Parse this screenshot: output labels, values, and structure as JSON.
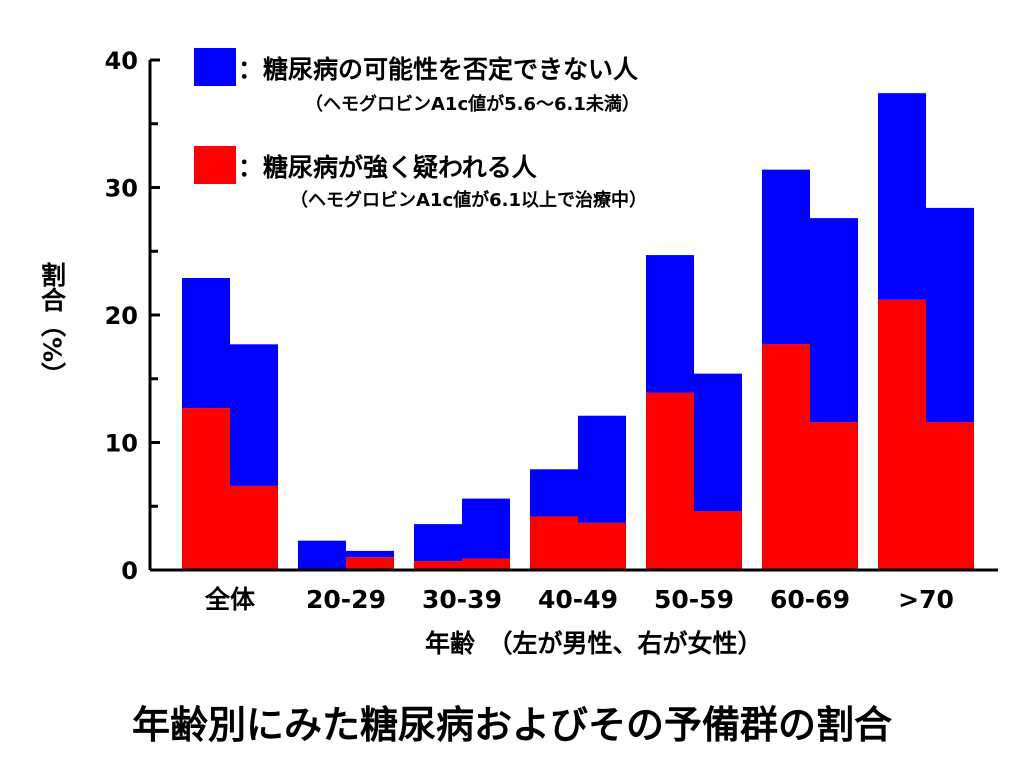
{
  "title": "年齢別にみた糖尿病およびその予備群の割合",
  "legend": {
    "items": [
      {
        "color": "#0000ff",
        "label": "：糖尿病の可能性を否定できない人",
        "sub": "（ヘモグロビンA1c値が5.6～6.1未満）"
      },
      {
        "color": "#ff0000",
        "label": "：糖尿病が強く疑われる人",
        "sub": "（ヘモグロビンA1c値が6.1以上で治療中）"
      }
    ]
  },
  "chart_data": {
    "type": "bar",
    "stacked": true,
    "ylabel": "割合（%）",
    "xlabel": "年齢　（左が男性、右が女性）",
    "ylim": [
      0,
      40
    ],
    "yticks": [
      0,
      10,
      20,
      30,
      40
    ],
    "categories": [
      "全体",
      "20-29",
      "30-39",
      "40-49",
      "50-59",
      "60-69",
      ">70"
    ],
    "groups": [
      "男性",
      "女性"
    ],
    "series": [
      {
        "name": "糖尿病が強く疑われる人",
        "color": "#ff0000",
        "male": [
          12.7,
          0.0,
          0.7,
          4.2,
          13.9,
          17.7,
          21.2
        ],
        "female": [
          6.6,
          1.0,
          0.9,
          3.7,
          4.6,
          11.6,
          11.6
        ]
      },
      {
        "name": "糖尿病の可能性を否定できない人",
        "color": "#0000ff",
        "male": [
          10.2,
          2.3,
          2.9,
          3.7,
          10.8,
          13.7,
          16.2
        ],
        "female": [
          11.1,
          0.5,
          4.7,
          8.4,
          10.8,
          16.0,
          16.8
        ]
      }
    ]
  }
}
